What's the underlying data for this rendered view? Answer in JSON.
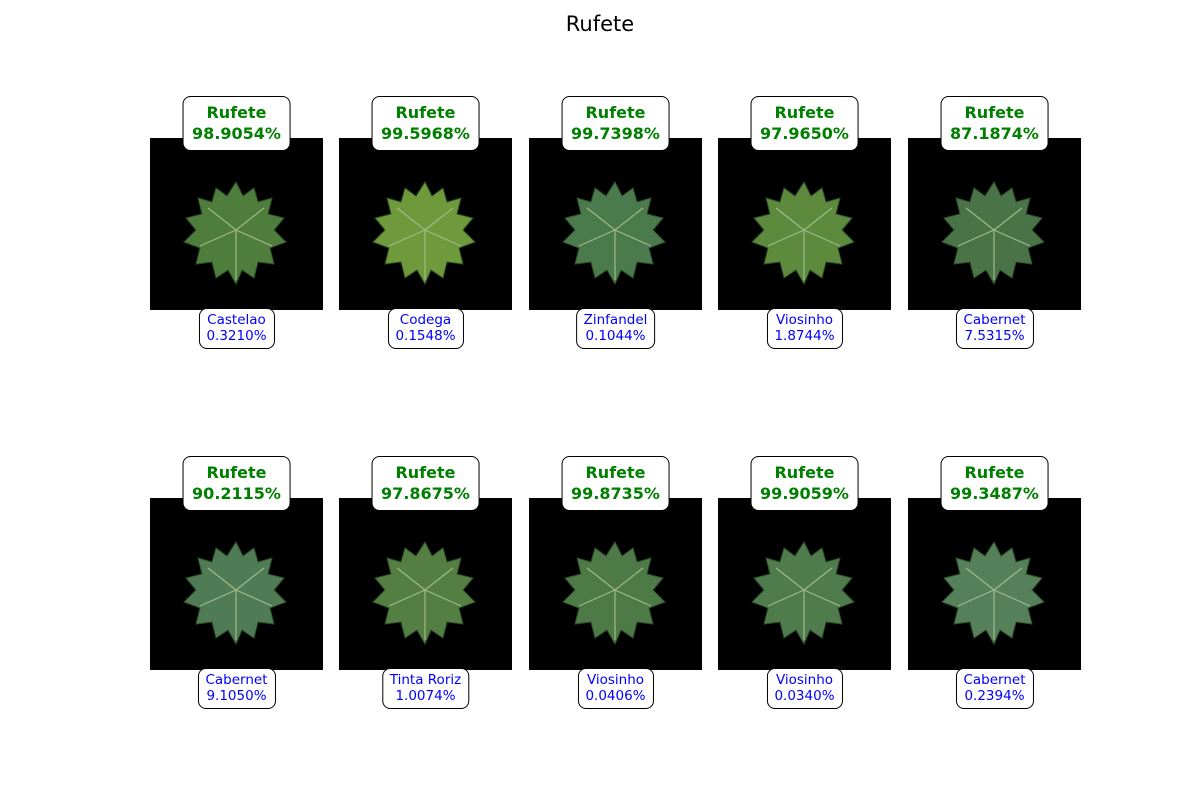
{
  "title": "Rufete",
  "colors": {
    "top_label": "#008000",
    "bottom_label": "#0000ff",
    "panel_bg": "#000000",
    "leaf": "#4e7a4a"
  },
  "panels": [
    {
      "top_class": "Rufete",
      "top_prob": "98.9054%",
      "second_class": "Castelao",
      "second_prob": "0.3210%",
      "leaf_color": "#4f7d3b"
    },
    {
      "top_class": "Rufete",
      "top_prob": "99.5968%",
      "second_class": "Codega",
      "second_prob": "0.1548%",
      "leaf_color": "#6f9a3c"
    },
    {
      "top_class": "Rufete",
      "top_prob": "99.7398%",
      "second_class": "Zinfandel",
      "second_prob": "0.1044%",
      "leaf_color": "#4b7a4c"
    },
    {
      "top_class": "Rufete",
      "top_prob": "97.9650%",
      "second_class": "Viosinho",
      "second_prob": "1.8744%",
      "leaf_color": "#5e8a3e"
    },
    {
      "top_class": "Rufete",
      "top_prob": "87.1874%",
      "second_class": "Cabernet",
      "second_prob": "7.5315%",
      "leaf_color": "#4a7447"
    },
    {
      "top_class": "Rufete",
      "top_prob": "90.2115%",
      "second_class": "Cabernet",
      "second_prob": "9.1050%",
      "leaf_color": "#4f7c55"
    },
    {
      "top_class": "Rufete",
      "top_prob": "97.8675%",
      "second_class": "Tinta Roriz",
      "second_prob": "1.0074%",
      "leaf_color": "#557f42"
    },
    {
      "top_class": "Rufete",
      "top_prob": "99.8735%",
      "second_class": "Viosinho",
      "second_prob": "0.0406%",
      "leaf_color": "#4d7a46"
    },
    {
      "top_class": "Rufete",
      "top_prob": "99.9059%",
      "second_class": "Viosinho",
      "second_prob": "0.0340%",
      "leaf_color": "#4f7b4d"
    },
    {
      "top_class": "Rufete",
      "top_prob": "99.3487%",
      "second_class": "Cabernet",
      "second_prob": "0.2394%",
      "leaf_color": "#55805a"
    }
  ]
}
